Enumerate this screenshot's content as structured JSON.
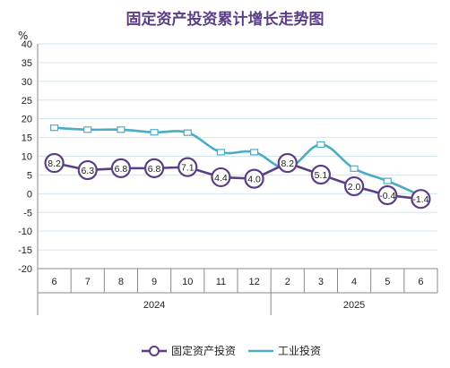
{
  "chart_data": {
    "type": "line",
    "title": "固定资产投资累计增长走势图",
    "unit": "%",
    "ylim": [
      -20,
      40
    ],
    "ystep": 5,
    "grid": true,
    "categories": [
      "6",
      "7",
      "8",
      "9",
      "10",
      "11",
      "12",
      "2",
      "3",
      "4",
      "5",
      "6"
    ],
    "years": [
      {
        "label": "2024",
        "start": 0,
        "end": 6
      },
      {
        "label": "2025",
        "start": 7,
        "end": 11
      }
    ],
    "legend_position": "bottom",
    "series": [
      {
        "name": "固定资产投资",
        "values": [
          8.2,
          6.3,
          6.8,
          6.8,
          7.1,
          4.4,
          4.0,
          8.2,
          5.1,
          2.0,
          -0.4,
          -1.4
        ],
        "labels": [
          "8.2",
          "6.3",
          "6.8",
          "6.8",
          "7.1",
          "4.4",
          "4.0",
          "8.2",
          "5.1",
          "2.0",
          "-0.4",
          "-1.4"
        ],
        "color": "#5b3f86",
        "marker": "circle"
      },
      {
        "name": "工业投资",
        "values": [
          17.6,
          17.1,
          17.1,
          16.4,
          16.3,
          11.1,
          11.1,
          6.8,
          13.1,
          6.7,
          3.4,
          -0.5
        ],
        "color": "#4bacc6",
        "marker": "square"
      }
    ]
  }
}
